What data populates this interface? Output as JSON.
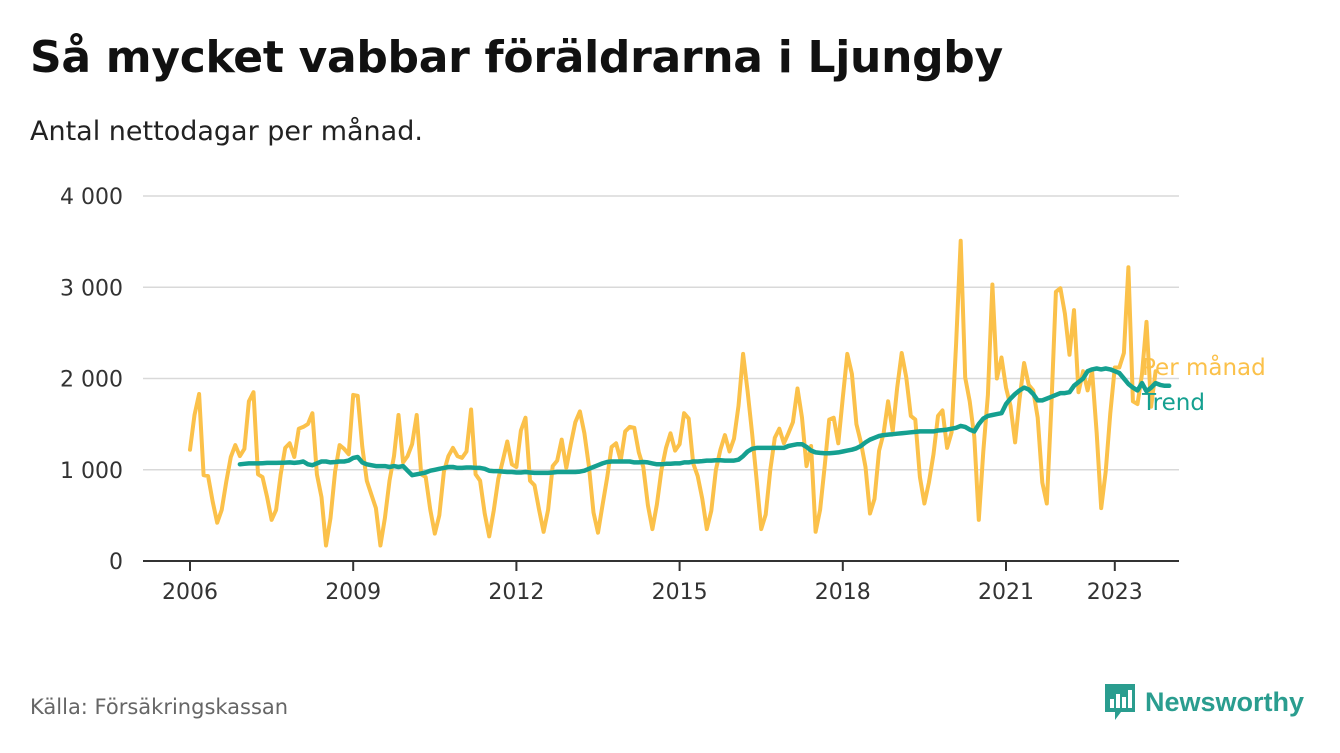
{
  "title": "Så mycket vabbar föräldrarna i Ljungby",
  "subtitle": "Antal nettodagar per månad.",
  "source": "Källa: Försäkringskassan",
  "brand": {
    "name": "Newsworthy",
    "icon": "bar-chart-speech-icon",
    "color": "#2a9d8f"
  },
  "chart_data": {
    "type": "line",
    "title": "Så mycket vabbar föräldrarna i Ljungby",
    "subtitle": "Antal nettodagar per månad.",
    "xlabel": "",
    "ylabel": "",
    "ylim": [
      0,
      4000
    ],
    "y_ticks": [
      {
        "value": 0,
        "label": "0"
      },
      {
        "value": 1000,
        "label": "1 000"
      },
      {
        "value": 2000,
        "label": "2 000"
      },
      {
        "value": 3000,
        "label": "3 000"
      },
      {
        "value": 4000,
        "label": "4 000"
      }
    ],
    "x_ticks": [
      {
        "value": 2006,
        "label": "2006"
      },
      {
        "value": 2009,
        "label": "2009"
      },
      {
        "value": 2012,
        "label": "2012"
      },
      {
        "value": 2015,
        "label": "2015"
      },
      {
        "value": 2018,
        "label": "2018"
      },
      {
        "value": 2021,
        "label": "2021"
      },
      {
        "value": 2023,
        "label": "2023"
      }
    ],
    "grid": true,
    "series": [
      {
        "name": "Per månad",
        "color": "#fbc14a",
        "start": "2006-01",
        "values": [
          1220,
          1600,
          1830,
          940,
          930,
          650,
          420,
          560,
          870,
          1140,
          1270,
          1150,
          1230,
          1750,
          1850,
          950,
          920,
          700,
          450,
          560,
          950,
          1240,
          1290,
          1140,
          1450,
          1470,
          1500,
          1620,
          950,
          700,
          170,
          470,
          980,
          1270,
          1230,
          1170,
          1820,
          1810,
          1250,
          880,
          730,
          580,
          170,
          470,
          880,
          1150,
          1600,
          1080,
          1150,
          1280,
          1600,
          950,
          920,
          560,
          300,
          500,
          980,
          1150,
          1240,
          1150,
          1130,
          1200,
          1660,
          950,
          880,
          520,
          270,
          550,
          900,
          1100,
          1310,
          1060,
          1030,
          1430,
          1570,
          880,
          830,
          560,
          320,
          560,
          1040,
          1100,
          1330,
          1020,
          1280,
          1520,
          1640,
          1400,
          1040,
          530,
          310,
          610,
          910,
          1250,
          1290,
          1100,
          1420,
          1470,
          1460,
          1190,
          1030,
          610,
          350,
          620,
          1000,
          1240,
          1400,
          1210,
          1280,
          1620,
          1560,
          1070,
          930,
          680,
          350,
          550,
          1000,
          1220,
          1380,
          1200,
          1340,
          1700,
          2270,
          1860,
          1400,
          880,
          350,
          510,
          1000,
          1350,
          1450,
          1290,
          1400,
          1520,
          1890,
          1570,
          1040,
          1260,
          320,
          560,
          1040,
          1550,
          1570,
          1290,
          1790,
          2270,
          2050,
          1500,
          1300,
          1030,
          520,
          680,
          1210,
          1400,
          1750,
          1420,
          1900,
          2280,
          2010,
          1590,
          1550,
          920,
          630,
          860,
          1170,
          1590,
          1650,
          1240,
          1410,
          2380,
          3510,
          2010,
          1750,
          1360,
          450,
          1200,
          1820,
          3030,
          2000,
          2230,
          1900,
          1700,
          1300,
          1780,
          2170,
          1930,
          1870,
          1570,
          860,
          630,
          1680,
          2950,
          2990,
          2710,
          2260,
          2750,
          1850,
          2080,
          1870,
          2080,
          1400,
          580,
          980,
          1620,
          2120,
          2120,
          2280,
          3220,
          1750,
          1720,
          2050,
          2620,
          1690,
          2080
        ]
      },
      {
        "name": "Trend",
        "color": "#15a090",
        "start": "2006-12",
        "values": [
          1060,
          1065,
          1070,
          1070,
          1070,
          1072,
          1075,
          1075,
          1075,
          1077,
          1078,
          1080,
          1075,
          1080,
          1090,
          1060,
          1050,
          1070,
          1090,
          1090,
          1080,
          1085,
          1090,
          1090,
          1100,
          1130,
          1140,
          1080,
          1060,
          1050,
          1040,
          1040,
          1040,
          1030,
          1040,
          1030,
          1040,
          990,
          940,
          950,
          960,
          970,
          990,
          1000,
          1010,
          1020,
          1030,
          1030,
          1020,
          1020,
          1025,
          1025,
          1020,
          1020,
          1010,
          990,
          985,
          985,
          980,
          975,
          975,
          970,
          970,
          975,
          970,
          965,
          965,
          965,
          965,
          970,
          975,
          975,
          975,
          975,
          975,
          980,
          990,
          1010,
          1030,
          1050,
          1070,
          1085,
          1090,
          1090,
          1090,
          1090,
          1090,
          1080,
          1080,
          1085,
          1080,
          1070,
          1060,
          1060,
          1065,
          1065,
          1070,
          1070,
          1080,
          1080,
          1090,
          1090,
          1095,
          1100,
          1100,
          1105,
          1105,
          1100,
          1100,
          1100,
          1110,
          1150,
          1200,
          1230,
          1240,
          1240,
          1240,
          1240,
          1240,
          1240,
          1240,
          1260,
          1270,
          1280,
          1280,
          1250,
          1210,
          1190,
          1185,
          1180,
          1180,
          1185,
          1190,
          1200,
          1210,
          1220,
          1235,
          1260,
          1300,
          1330,
          1350,
          1370,
          1380,
          1385,
          1390,
          1395,
          1400,
          1405,
          1410,
          1415,
          1420,
          1420,
          1420,
          1420,
          1430,
          1435,
          1440,
          1450,
          1460,
          1480,
          1470,
          1440,
          1420,
          1500,
          1560,
          1590,
          1600,
          1610,
          1620,
          1720,
          1780,
          1830,
          1870,
          1900,
          1880,
          1830,
          1760,
          1760,
          1780,
          1800,
          1820,
          1840,
          1840,
          1850,
          1920,
          1960,
          2000,
          2080,
          2100,
          2110,
          2100,
          2110,
          2100,
          2080,
          2060,
          2000,
          1940,
          1900,
          1870,
          1950,
          1860,
          1900,
          1950,
          1930,
          1920,
          1920
        ]
      }
    ]
  }
}
